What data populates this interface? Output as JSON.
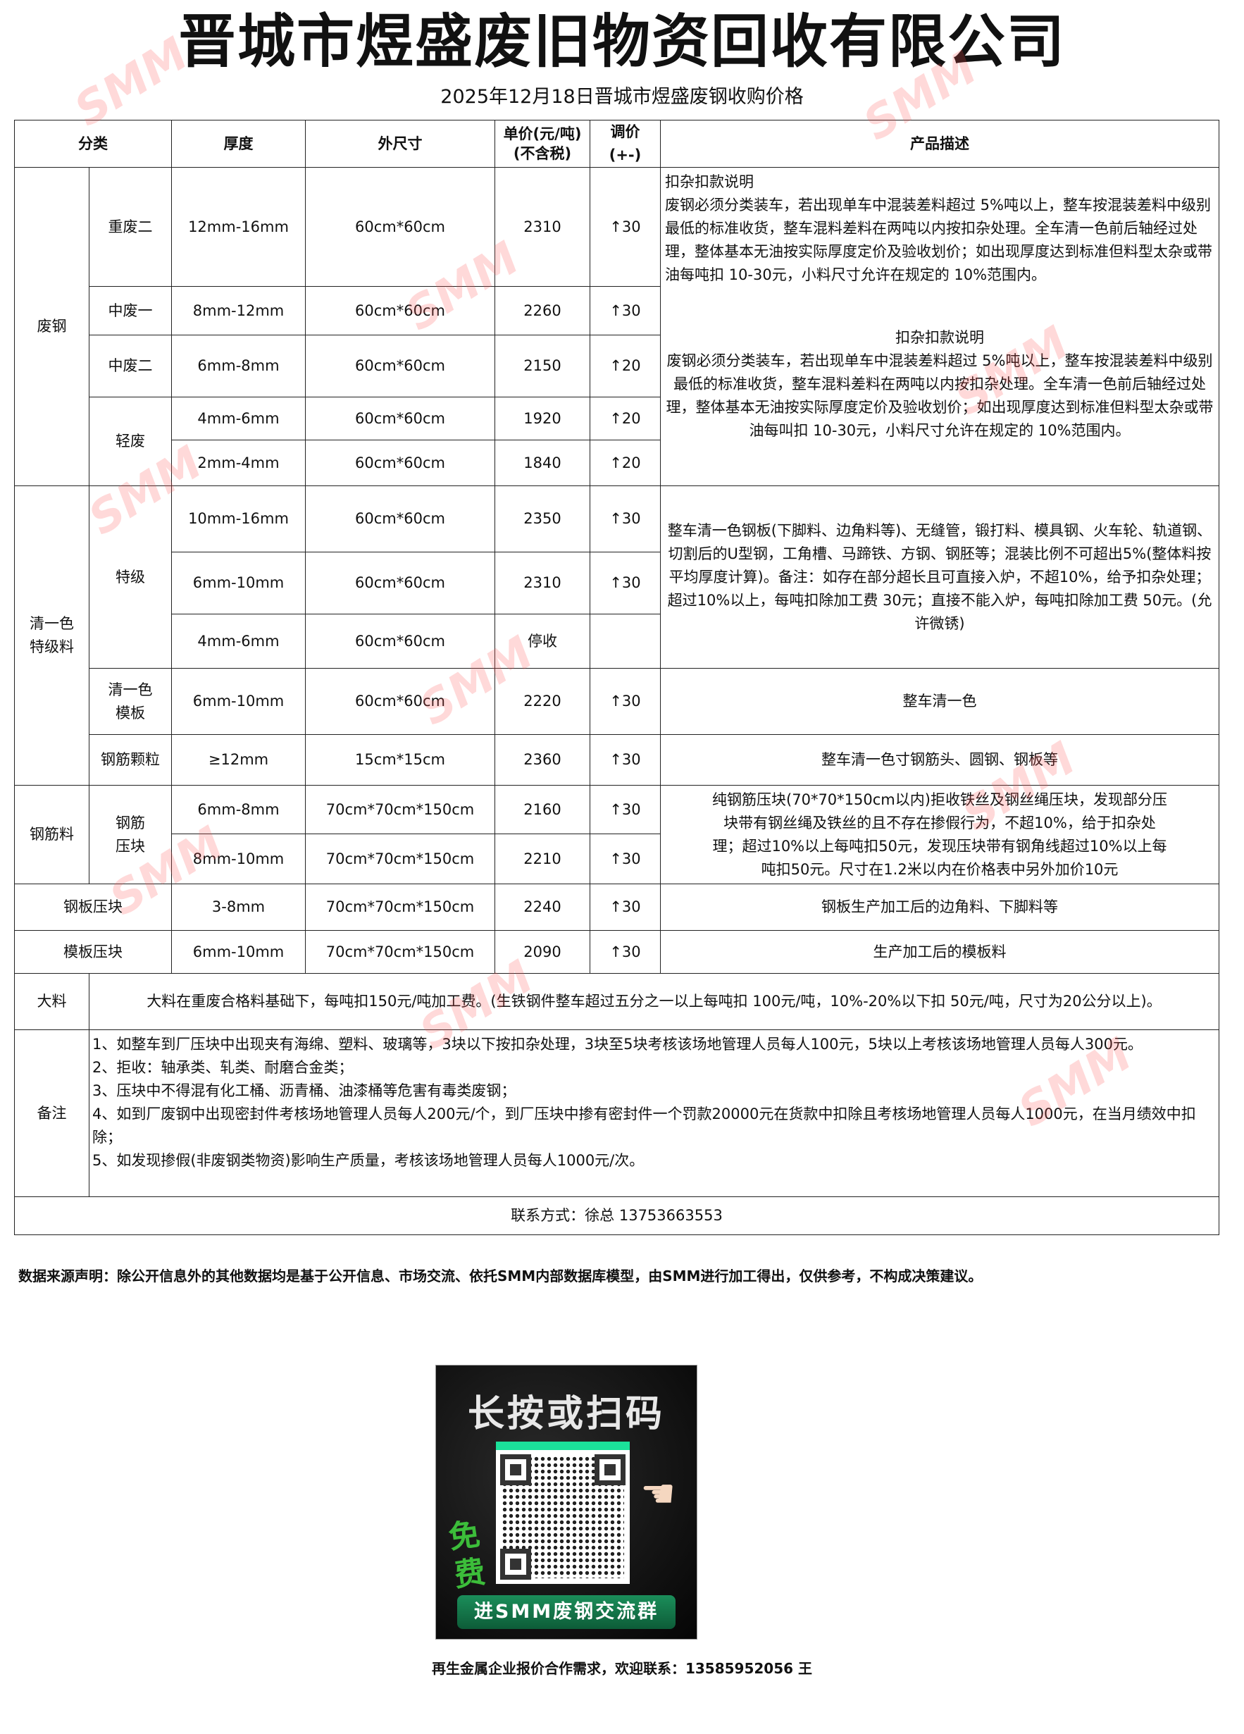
{
  "header": {
    "title": "晋城市煜盛废旧物资回收有限公司",
    "subtitle": "2025年12月18日晋城市煜盛废钢收购价格"
  },
  "table": {
    "columns": [
      "分类",
      "厚度",
      "外尺寸",
      "单价(元/吨)",
      "(不含税)",
      "调价(+-)",
      "产品描述"
    ],
    "groups": {
      "scrap": "废钢",
      "clean": "清一色特级料",
      "rebar": "钢筋料",
      "plate_block": "钢板压块",
      "mold_block": "模板压块"
    },
    "rows": [
      {
        "sub": "重废二",
        "thickness": "12mm-16mm",
        "size": "60cm*60cm",
        "price": "2310",
        "adj": "↑30"
      },
      {
        "sub": "中废一",
        "thickness": "8mm-12mm",
        "size": "60cm*60cm",
        "price": "2260",
        "adj": "↑30"
      },
      {
        "sub": "中废二",
        "thickness": "6mm-8mm",
        "size": "60cm*60cm",
        "price": "2150",
        "adj": "↑20"
      },
      {
        "sub": "轻废",
        "thickness": "4mm-6mm",
        "size": "60cm*60cm",
        "price": "1920",
        "adj": "↑20"
      },
      {
        "sub": "",
        "thickness": "2mm-4mm",
        "size": "60cm*60cm",
        "price": "1840",
        "adj": "↑20"
      },
      {
        "sub": "特级",
        "thickness": "10mm-16mm",
        "size": "60cm*60cm",
        "price": "2350",
        "adj": "↑30"
      },
      {
        "sub": "",
        "thickness": "6mm-10mm",
        "size": "60cm*60cm",
        "price": "2310",
        "adj": "↑30"
      },
      {
        "sub": "",
        "thickness": "4mm-6mm",
        "size": "60cm*60cm",
        "price": "停收",
        "adj": ""
      },
      {
        "sub": "清一色模板",
        "thickness": "6mm-10mm",
        "size": "60cm*60cm",
        "price": "2220",
        "adj": "↑30"
      },
      {
        "sub": "钢筋颗粒",
        "thickness": "≥12mm",
        "size": "15cm*15cm",
        "price": "2360",
        "adj": "↑30"
      },
      {
        "sub": "钢筋压块",
        "thickness": "6mm-8mm",
        "size": "70cm*70cm*150cm",
        "price": "2160",
        "adj": "↑30"
      },
      {
        "sub": "",
        "thickness": "8mm-10mm",
        "size": "70cm*70cm*150cm",
        "price": "2210",
        "adj": "↑30"
      },
      {
        "sub": "",
        "thickness": "3-8mm",
        "size": "70cm*70cm*150cm",
        "price": "2240",
        "adj": "↑30"
      },
      {
        "sub": "",
        "thickness": "6mm-10mm",
        "size": "70cm*70cm*150cm",
        "price": "2090",
        "adj": "↑30"
      }
    ],
    "descriptions": {
      "scrap_1_title": "扣杂扣款说明",
      "scrap_1_body": "废钢必须分类装车，若出现单车中混装差料超过 5%吨以上，整车按混装差料中级别最低的标准收货，整车混料差料在两吨以内按扣杂处理。全车清一色前后轴经过处理，整体基本无油按实际厚度定价及验收划价；如出现厚度达到标准但料型太杂或带油每吨扣 10-30元，小料尺寸允许在规定的 10%范围内。",
      "scrap_2_title": "扣杂扣款说明",
      "scrap_2_body": "废钢必须分类装车，若出现单车中混装差料超过 5%吨以上，整车按混装差料中级别最低的标准收货，整车混料差料在两吨以内按扣杂处理。全车清一色前后轴经过处理，整体基本无油按实际厚度定价及验收划价；如出现厚度达到标准但料型太杂或带油每叫扣 10-30元，小料尺寸允许在规定的 10%范围内。",
      "special": "整车清一色钢板(下脚料、边角料等)、无缝管，锻打料、模具钢、火车轮、轨道钢、切割后的U型钢，工角槽、马蹄铁、方钢、钢胚等；混装比例不可超出5%(整体料按平均厚度计算)。备注：如存在部分超长且可直接入炉，不超10%，给予扣杂处理；超过10%以上，每吨扣除加工费 30元；直接不能入炉，每吨扣除加工费 50元。(允许微锈)",
      "mold": "整车清一色",
      "rebar_grain": "整车清一色寸钢筋头、圆钢、钢板等",
      "rebar_block": "纯钢筋压块(70*70*150cm以内)拒收铁丝及钢丝绳压块，发现部分压块带有钢丝绳及铁丝的且不存在掺假行为，不超10%，给于扣杂处理；超过10%以上每吨扣50元，发现压块带有钢角线超过10%以上每吨扣50元。尺寸在1.2米以内在价格表中另外加价10元",
      "plate_block": "钢板生产加工后的边角料、下脚料等",
      "mold_block": "生产加工后的模板料"
    },
    "bulk": {
      "label": "大料",
      "text": "大料在重废合格料基础下，每吨扣150元/吨加工费。(生铁钢件整车超过五分之一以上每吨扣 100元/吨，10%-20%以下扣 50元/吨，尺寸为20公分以上)。"
    },
    "remarks": {
      "label": "备注",
      "items": [
        "1、如整车到厂压块中出现夹有海绵、塑料、玻璃等，3块以下按扣杂处理，3块至5块考核该场地管理人员每人100元，5块以上考核该场地管理人员每人300元。",
        "2、拒收：轴承类、轧类、耐磨合金类；",
        "3、压块中不得混有化工桶、沥青桶、油漆桶等危害有毒类废钢；",
        "4、如到厂废钢中出现密封件考核场地管理人员每人200元/个，到厂压块中掺有密封件一个罚款20000元在货款中扣除且考核场地管理人员每人1000元，在当月绩效中扣除；",
        "5、如发现掺假(非废钢类物资)影响生产质量，考核该场地管理人员每人1000元/次。"
      ]
    },
    "contact": "联系方式：徐总  13753663553"
  },
  "disclaimer": "数据来源声明：除公开信息外的其他数据均是基于公开信息、市场交流、依托SMM内部数据库模型，由SMM进行加工得出，仅供参考，不构成决策建议。",
  "qr": {
    "headline": "长按或扫码",
    "free": "免费",
    "banner": "进SMM废钢交流群",
    "icon": "qr-code-icon"
  },
  "footer": "再生金属企业报价合作需求，欢迎联系：13585952056 王",
  "watermark": "SMM",
  "colors": {
    "watermark": "#ff5050",
    "qr_accent": "#1be19a",
    "qr_banner": "#1b8e5a"
  }
}
